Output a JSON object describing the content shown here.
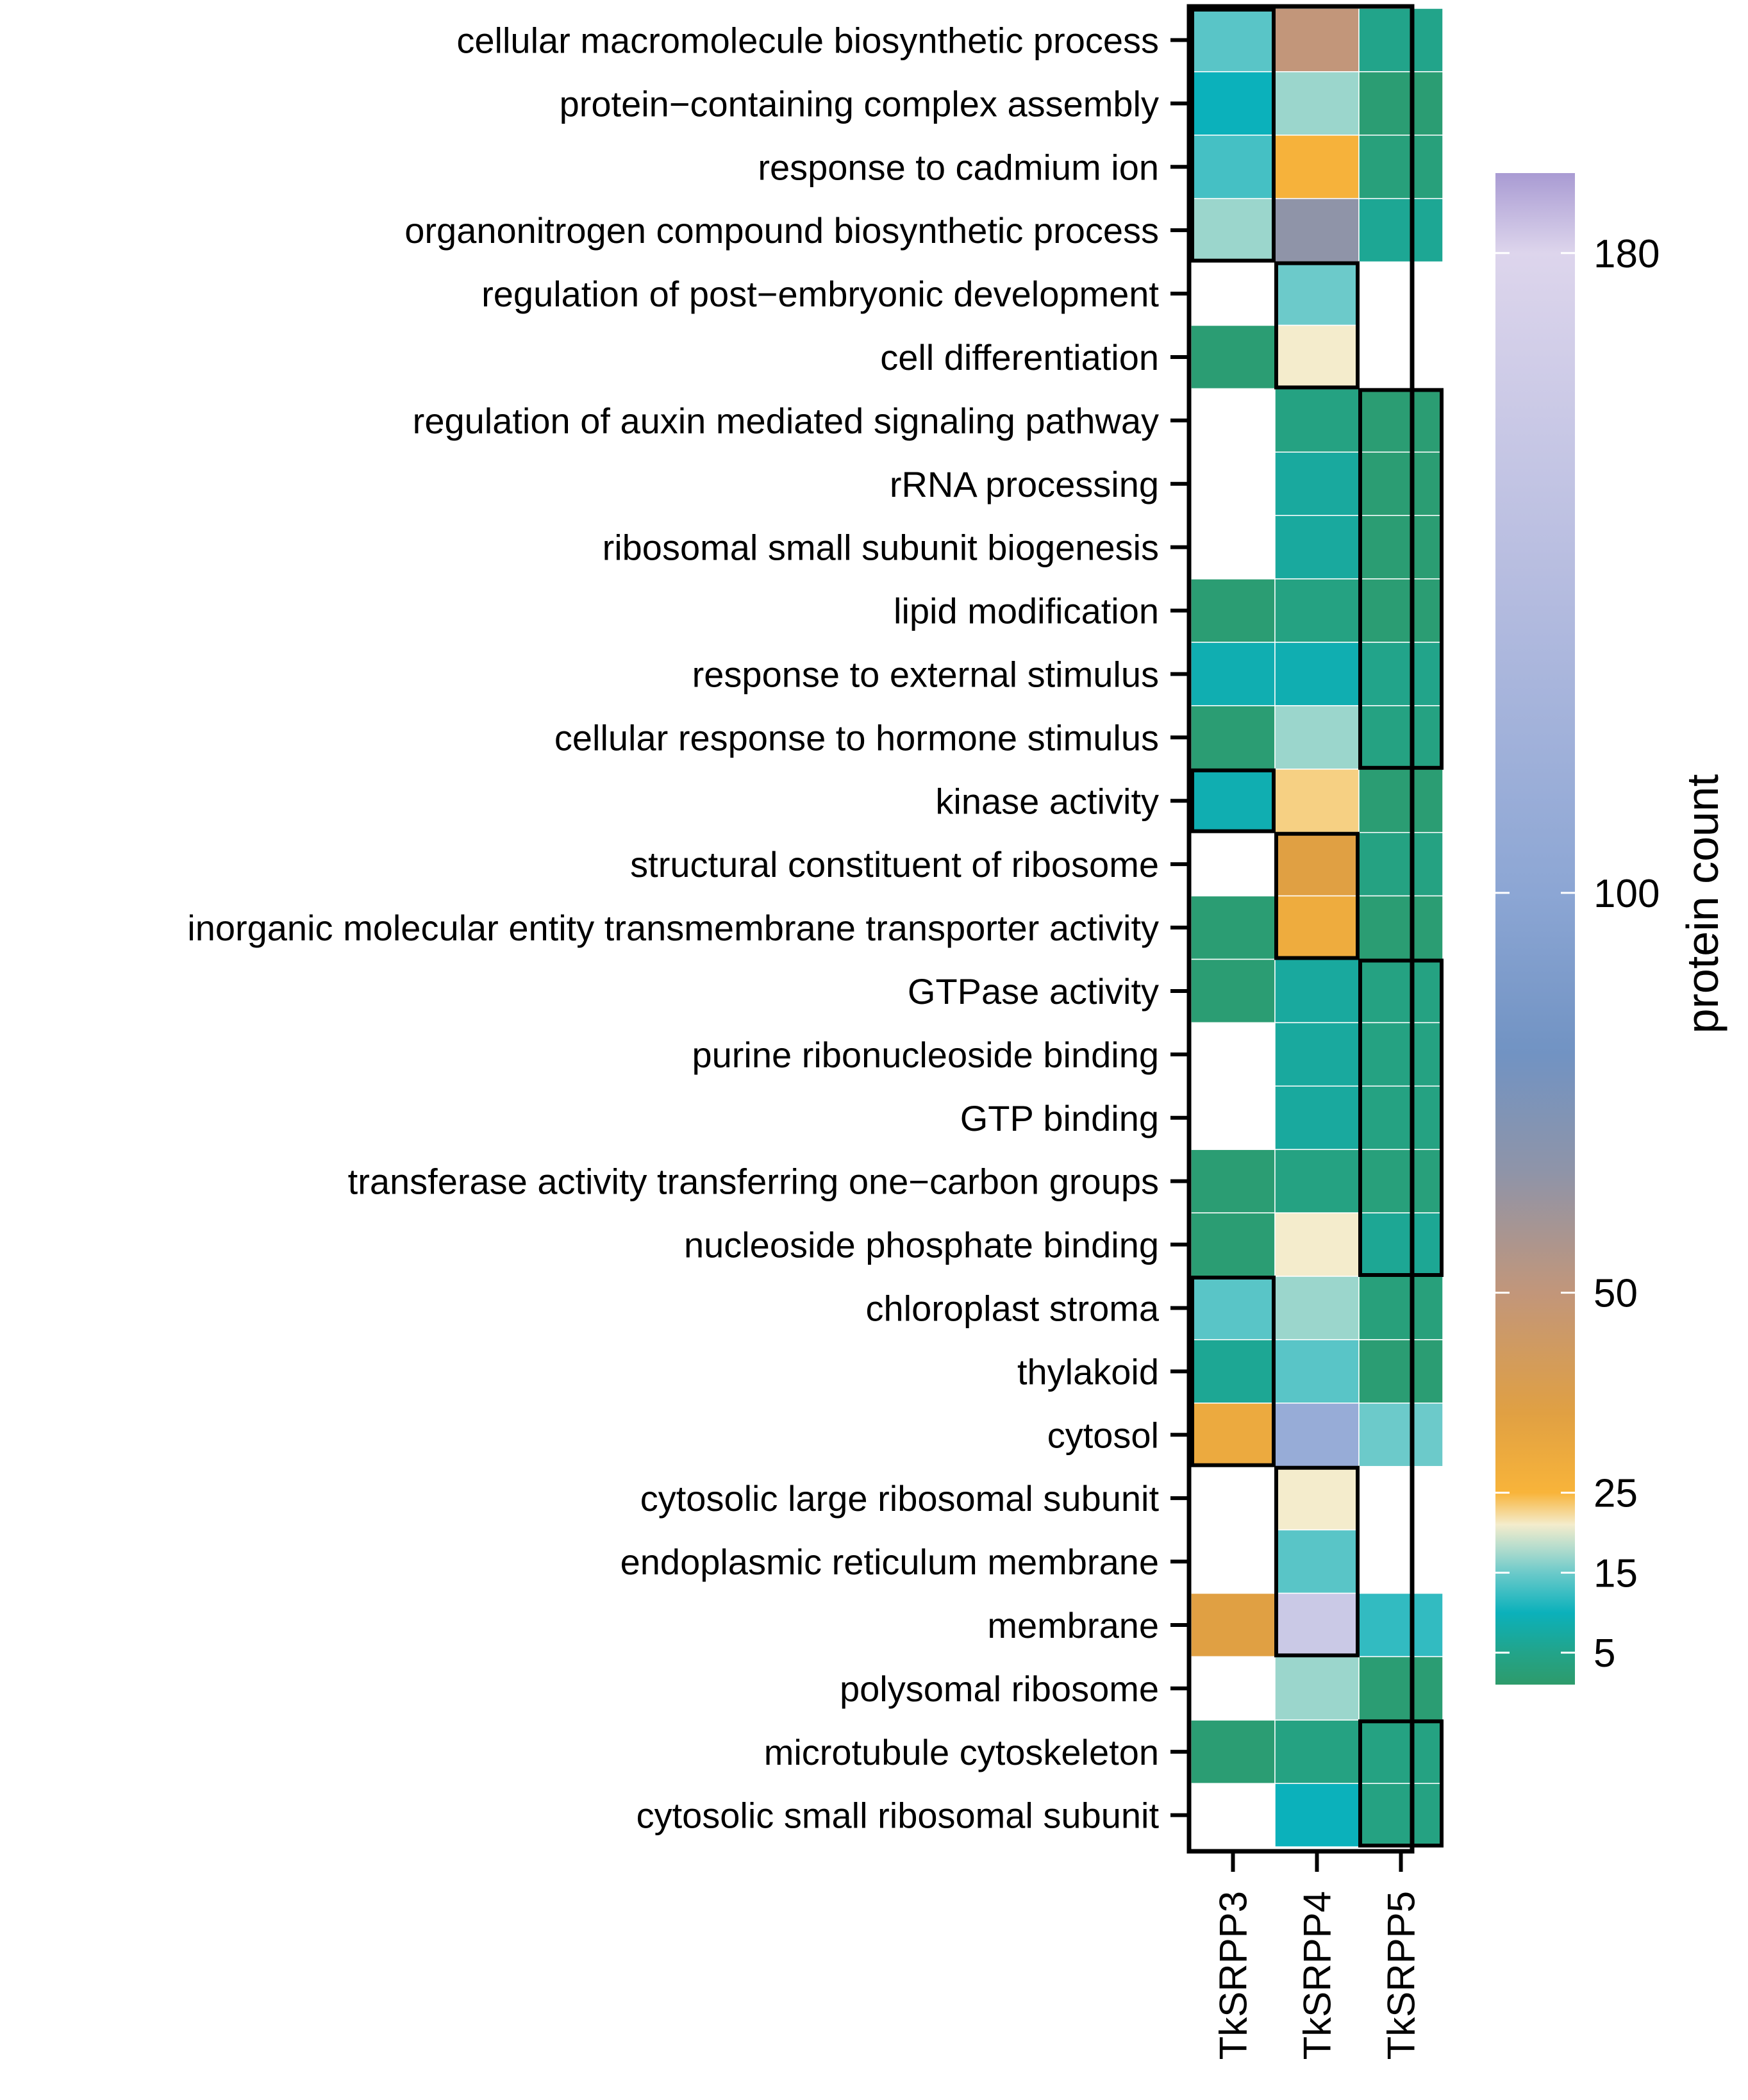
{
  "chart_data": {
    "type": "heatmap",
    "title": "",
    "colorbar": {
      "title": "protein count",
      "ticks": [
        5,
        15,
        25,
        50,
        100,
        180
      ],
      "range": [
        1,
        190
      ],
      "stops": [
        {
          "value": 1,
          "color": "#2e9b6b"
        },
        {
          "value": 5,
          "color": "#22a48a"
        },
        {
          "value": 10,
          "color": "#0bb1bb"
        },
        {
          "value": 15,
          "color": "#6ccaca"
        },
        {
          "value": 18,
          "color": "#b2dccd"
        },
        {
          "value": 21,
          "color": "#f4eccc"
        },
        {
          "value": 25,
          "color": "#f8b43a"
        },
        {
          "value": 35,
          "color": "#e0a043"
        },
        {
          "value": 50,
          "color": "#c2967a"
        },
        {
          "value": 65,
          "color": "#8f94a8"
        },
        {
          "value": 80,
          "color": "#7193c3"
        },
        {
          "value": 100,
          "color": "#8ca6d4"
        },
        {
          "value": 140,
          "color": "#b7bde0"
        },
        {
          "value": 180,
          "color": "#ddd5ec"
        },
        {
          "value": 190,
          "color": "#a99bd3"
        }
      ]
    },
    "columns": [
      "TkSRPP3",
      "TkSRPP4",
      "TkSRPP5"
    ],
    "rows": [
      "cellular macromolecule biosynthetic process",
      "protein−containing complex assembly",
      "response to cadmium ion",
      "organonitrogen compound biosynthetic process",
      "regulation of post−embryonic development",
      "cell differentiation",
      "regulation of auxin mediated signaling pathway",
      "rRNA processing",
      "ribosomal small subunit biogenesis",
      "lipid modification",
      "response to external stimulus",
      "cellular response to hormone stimulus",
      "kinase activity",
      "structural constituent of ribosome",
      "inorganic molecular entity transmembrane transporter activity",
      "GTPase activity",
      "purine ribonucleoside binding",
      "GTP binding",
      "transferase activity transferring one−carbon groups",
      "nucleoside phosphate binding",
      "chloroplast stroma",
      "thylakoid",
      "cytosol",
      "cytosolic large ribosomal subunit",
      "endoplasmic reticulum membrane",
      "membrane",
      "polysomal ribosome",
      "microtubule cytoskeleton",
      "cytosolic small ribosomal subunit"
    ],
    "values": [
      [
        14,
        50,
        5
      ],
      [
        10,
        17,
        2
      ],
      [
        13,
        26,
        3
      ],
      [
        17,
        65,
        6
      ],
      [
        null,
        15,
        null
      ],
      [
        2,
        21,
        null
      ],
      [
        null,
        4,
        2
      ],
      [
        null,
        7,
        2
      ],
      [
        null,
        7,
        2
      ],
      [
        2,
        4,
        2
      ],
      [
        9,
        9,
        5
      ],
      [
        2,
        17,
        4
      ],
      [
        9,
        23,
        2
      ],
      [
        null,
        35,
        4
      ],
      [
        2,
        29,
        2
      ],
      [
        2,
        7,
        4
      ],
      [
        null,
        7,
        4
      ],
      [
        null,
        7,
        4
      ],
      [
        2,
        4,
        3
      ],
      [
        2,
        21,
        6
      ],
      [
        14,
        17,
        3
      ],
      [
        6,
        14,
        2
      ],
      [
        30,
        110,
        15
      ],
      [
        null,
        21,
        null
      ],
      [
        null,
        14,
        null
      ],
      [
        35,
        160,
        12
      ],
      [
        null,
        17,
        2
      ],
      [
        2,
        4,
        4
      ],
      [
        null,
        10,
        4
      ]
    ],
    "highlight_groups": [
      {
        "column": "TkSRPP3",
        "rows": [
          0,
          3
        ]
      },
      {
        "column": "TkSRPP4",
        "rows": [
          4,
          5
        ]
      },
      {
        "column": "TkSRPP5",
        "rows": [
          6,
          11
        ]
      },
      {
        "column": "TkSRPP3",
        "rows": [
          12,
          12
        ]
      },
      {
        "column": "TkSRPP4",
        "rows": [
          13,
          14
        ]
      },
      {
        "column": "TkSRPP5",
        "rows": [
          15,
          19
        ]
      },
      {
        "column": "TkSRPP3",
        "rows": [
          20,
          22
        ]
      },
      {
        "column": "TkSRPP4",
        "rows": [
          23,
          25
        ]
      },
      {
        "column": "TkSRPP5",
        "rows": [
          27,
          28
        ]
      }
    ]
  }
}
